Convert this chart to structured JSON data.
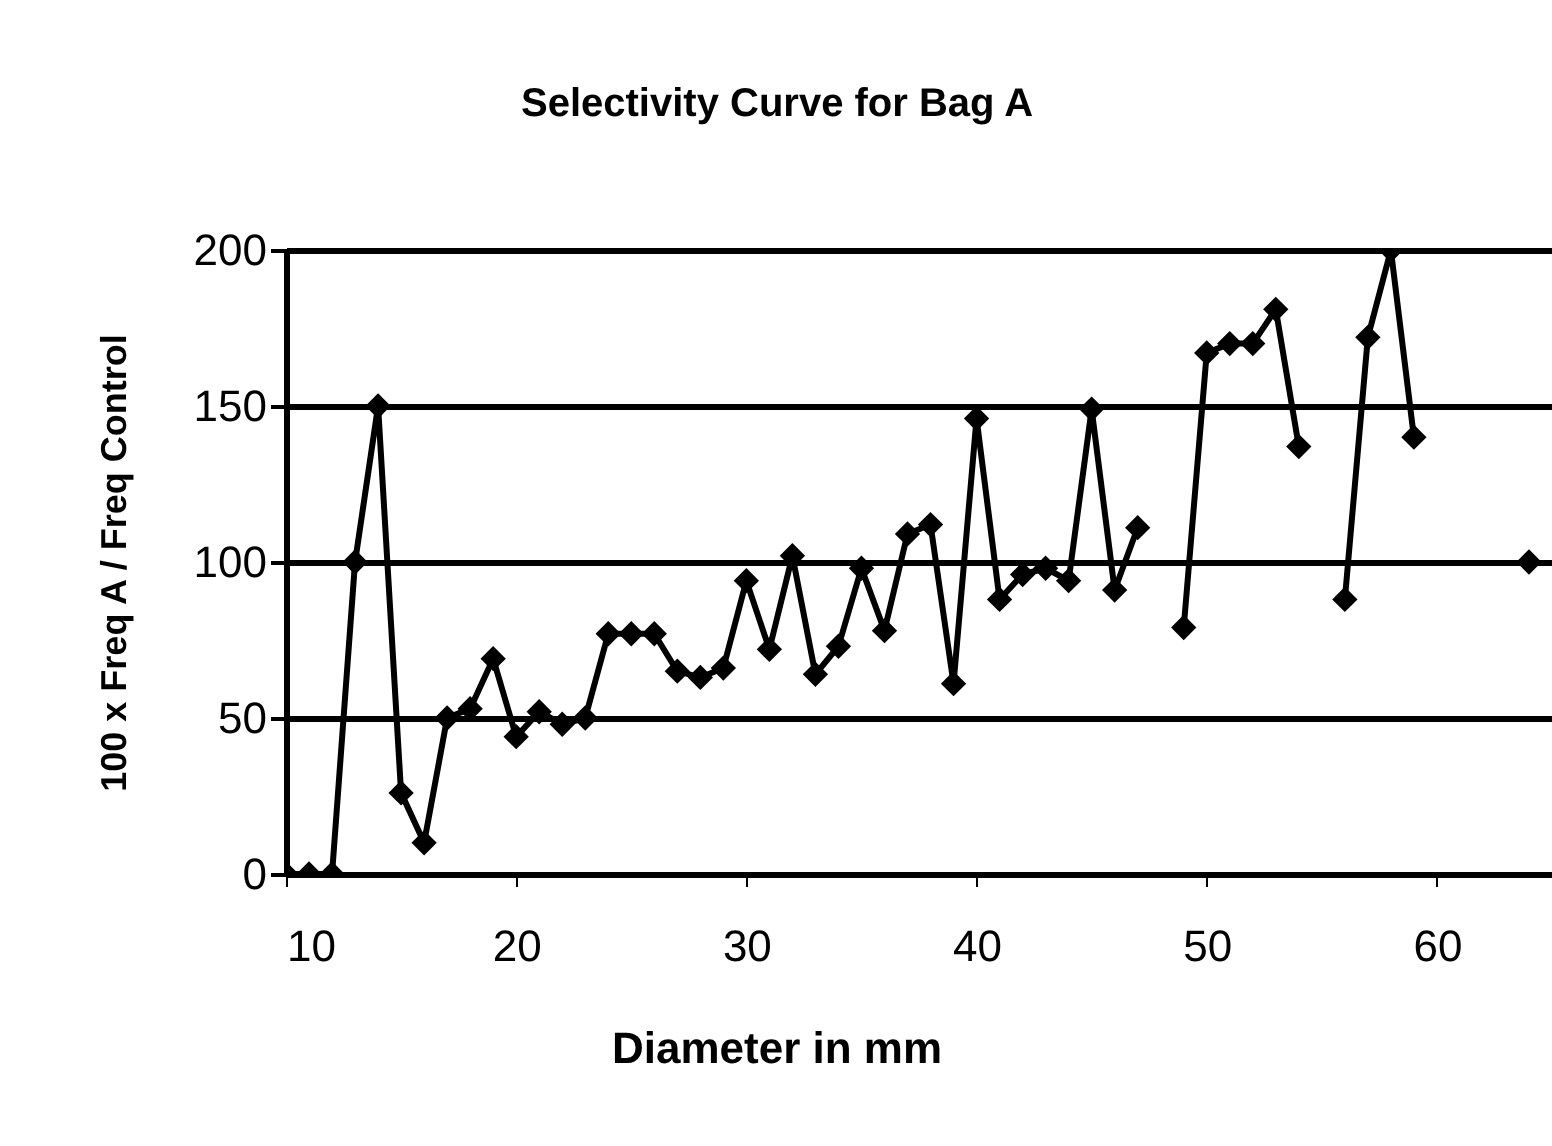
{
  "chart_data": {
    "type": "line",
    "title": "Selectivity Curve for Bag A",
    "xlabel": "Diameter in mm",
    "ylabel": "100 x Freq A / Freq Control",
    "x": [
      10,
      11,
      12,
      13,
      14,
      15,
      16,
      17,
      18,
      19,
      20,
      21,
      22,
      23,
      24,
      25,
      26,
      27,
      28,
      29,
      30,
      31,
      32,
      33,
      34,
      35,
      36,
      37,
      38,
      39,
      40,
      41,
      42,
      43,
      44,
      45,
      46,
      47,
      48,
      49,
      50,
      51,
      52,
      53,
      54,
      55,
      56,
      57,
      58,
      59,
      60,
      61,
      62,
      63,
      64
    ],
    "series": [
      {
        "color": "#000000",
        "values": [
          0,
          0,
          0,
          100,
          150,
          26,
          10,
          50,
          53,
          69,
          44,
          52,
          48,
          50,
          77,
          77,
          77,
          65,
          63,
          66,
          94,
          72,
          102,
          64,
          73,
          98,
          78,
          109,
          112,
          61,
          146,
          88,
          96,
          98,
          94,
          149,
          91,
          111,
          null,
          79,
          167,
          170,
          170,
          181,
          137,
          null,
          88,
          172,
          200,
          140,
          null,
          null,
          null,
          null,
          100
        ]
      }
    ],
    "xlim": [
      10,
      65
    ],
    "xticks": [
      10,
      20,
      30,
      40,
      50,
      60
    ],
    "ylim": [
      0,
      200
    ],
    "yticks": [
      0,
      50,
      100,
      150,
      200
    ],
    "grid": "y",
    "marker": "diamond",
    "line_style": "solid"
  }
}
